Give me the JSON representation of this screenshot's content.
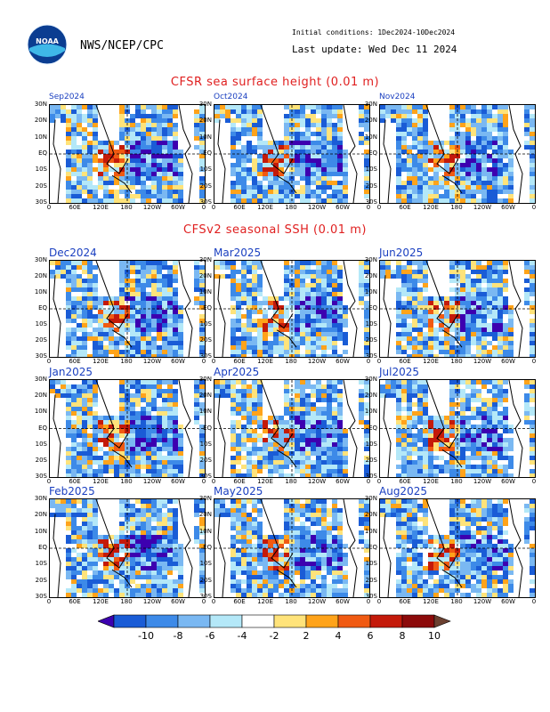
{
  "header": {
    "agency": "NWS/NCEP/CPC",
    "logo_text": "NOAA",
    "initial_conditions": "Initial conditions: 1Dec2024-10Dec2024",
    "last_update": "Last update: Wed Dec 11 2024"
  },
  "sections": {
    "observed_title": "CFSR sea surface height (0.01 m)",
    "forecast_title": "CFSv2 seasonal SSH (0.01 m)"
  },
  "panels": [
    {
      "id": "sep2024",
      "title": "Sep2024",
      "small": true
    },
    {
      "id": "oct2024",
      "title": "Oct2024",
      "small": true
    },
    {
      "id": "nov2024",
      "title": "Nov2024",
      "small": true
    },
    {
      "id": "dec2024",
      "title": "Dec2024",
      "small": false
    },
    {
      "id": "mar2025",
      "title": "Mar2025",
      "small": false
    },
    {
      "id": "jun2025",
      "title": "Jun2025",
      "small": false
    },
    {
      "id": "jan2025",
      "title": "Jan2025",
      "small": false
    },
    {
      "id": "apr2025",
      "title": "Apr2025",
      "small": false
    },
    {
      "id": "jul2025",
      "title": "Jul2025",
      "small": false
    },
    {
      "id": "feb2025",
      "title": "Feb2025",
      "small": false
    },
    {
      "id": "may2025",
      "title": "May2025",
      "small": false
    },
    {
      "id": "aug2025",
      "title": "Aug2025",
      "small": false
    }
  ],
  "axes": {
    "lat_labels": [
      "30N",
      "20N",
      "10N",
      "EQ",
      "10S",
      "20S",
      "30S"
    ],
    "lon_labels": [
      "0",
      "60E",
      "120E",
      "180",
      "120W",
      "60W",
      "0"
    ]
  },
  "colorbar": {
    "labels": [
      "-10",
      "-8",
      "-6",
      "-4",
      "-2",
      "2",
      "4",
      "6",
      "8",
      "10"
    ],
    "colors": [
      "#3d00b0",
      "#1a5cd6",
      "#3d8ae8",
      "#7ab8f2",
      "#b4e8f8",
      "#ffffff",
      "#ffe37a",
      "#ffa31a",
      "#f05a12",
      "#c41a0a",
      "#8c0a0a",
      "#6b4030"
    ]
  }
}
